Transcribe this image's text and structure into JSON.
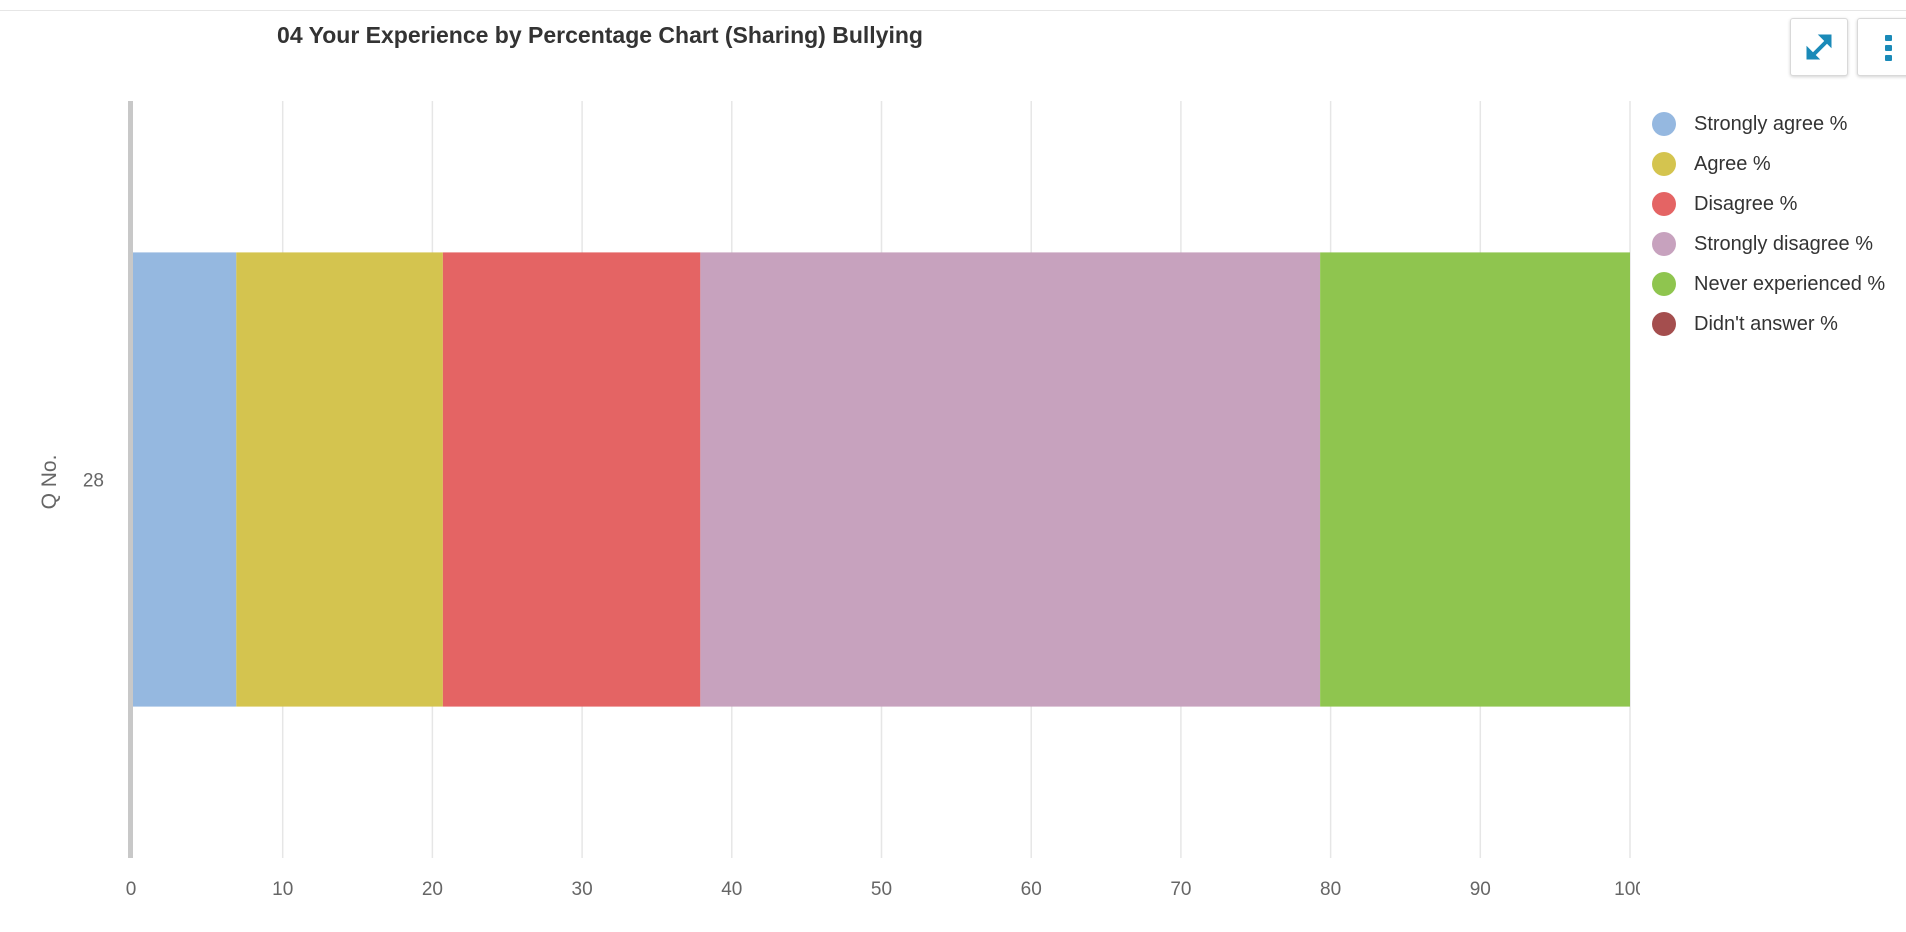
{
  "header": {
    "title": "04 Your Experience by Percentage Chart (Sharing) Bullying"
  },
  "toolbar": {
    "expand_icon": "expand-diagonal-icon",
    "more_icon": "vertical-ellipsis-icon",
    "accent_color": "#1a8ab8"
  },
  "chart_data": {
    "type": "bar",
    "orientation": "horizontal",
    "stacked": true,
    "title": "04 Your Experience by Percentage Chart (Sharing) Bullying",
    "xlabel": "",
    "ylabel": "Q No.",
    "categories": [
      "28"
    ],
    "xlim": [
      0,
      100
    ],
    "xticks": [
      "0",
      "10",
      "20",
      "30",
      "40",
      "50",
      "60",
      "70",
      "80",
      "90",
      "100"
    ],
    "grid": true,
    "legend_position": "right",
    "series": [
      {
        "name": "Strongly agree %",
        "color": "#95b8e0",
        "values": [
          6.9
        ]
      },
      {
        "name": "Agree %",
        "color": "#d4c44f",
        "values": [
          13.8
        ]
      },
      {
        "name": "Disagree %",
        "color": "#e46464",
        "values": [
          17.2
        ]
      },
      {
        "name": "Strongly disagree %",
        "color": "#c7a2be",
        "values": [
          41.4
        ]
      },
      {
        "name": "Never experienced %",
        "color": "#8fc54f",
        "values": [
          20.7
        ]
      },
      {
        "name": "Didn't answer %",
        "color": "#a44e4e",
        "values": [
          0
        ]
      }
    ]
  }
}
